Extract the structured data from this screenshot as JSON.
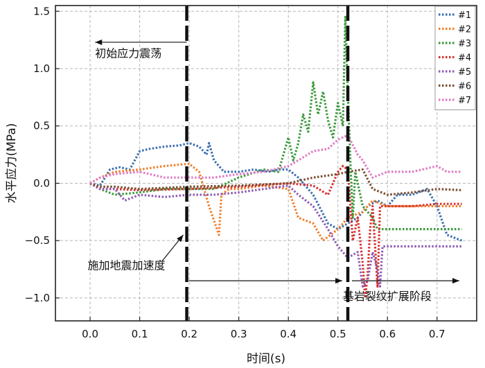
{
  "chart_data": {
    "type": "line",
    "title": "",
    "xlabel": "时间(s)",
    "ylabel": "水平应力(MPa)",
    "xlim": [
      -0.07,
      0.78
    ],
    "ylim": [
      -1.2,
      1.55
    ],
    "x_ticks": [
      0.0,
      0.1,
      0.2,
      0.3,
      0.4,
      0.5,
      0.6,
      0.7
    ],
    "x_tick_labels": [
      "0.0",
      "0.1",
      "0.2",
      "0.3",
      "0.4",
      "0.5",
      "0.6",
      "0.7"
    ],
    "y_ticks": [
      -1.0,
      -0.5,
      0.0,
      0.5,
      1.0,
      1.5
    ],
    "y_tick_labels": [
      "−1.0",
      "−0.5",
      "0.0",
      "0.5",
      "1.0",
      "1.5"
    ],
    "grid": true,
    "legend_position": "top-right",
    "series": [
      {
        "name": "#1",
        "color": "#3a6fb0",
        "points": [
          [
            0.0,
            0.0
          ],
          [
            0.02,
            -0.02
          ],
          [
            0.04,
            0.12
          ],
          [
            0.06,
            0.14
          ],
          [
            0.08,
            0.12
          ],
          [
            0.1,
            0.28
          ],
          [
            0.12,
            0.3
          ],
          [
            0.15,
            0.32
          ],
          [
            0.18,
            0.33
          ],
          [
            0.2,
            0.35
          ],
          [
            0.22,
            0.32
          ],
          [
            0.235,
            0.25
          ],
          [
            0.24,
            0.35
          ],
          [
            0.25,
            0.2
          ],
          [
            0.27,
            0.1
          ],
          [
            0.3,
            0.1
          ],
          [
            0.33,
            0.12
          ],
          [
            0.36,
            0.1
          ],
          [
            0.38,
            0.12
          ],
          [
            0.4,
            0.12
          ],
          [
            0.42,
            0.05
          ],
          [
            0.45,
            -0.1
          ],
          [
            0.48,
            -0.35
          ],
          [
            0.5,
            -0.4
          ],
          [
            0.52,
            -0.35
          ],
          [
            0.54,
            -0.3
          ],
          [
            0.56,
            -0.2
          ],
          [
            0.58,
            -0.15
          ],
          [
            0.6,
            -0.2
          ],
          [
            0.62,
            -0.1
          ],
          [
            0.65,
            -0.1
          ],
          [
            0.68,
            -0.05
          ],
          [
            0.7,
            -0.2
          ],
          [
            0.72,
            -0.45
          ],
          [
            0.75,
            -0.5
          ]
        ]
      },
      {
        "name": "#2",
        "color": "#f07f2c",
        "points": [
          [
            0.0,
            0.0
          ],
          [
            0.02,
            0.05
          ],
          [
            0.05,
            0.1
          ],
          [
            0.1,
            0.12
          ],
          [
            0.15,
            0.15
          ],
          [
            0.2,
            0.17
          ],
          [
            0.22,
            0.1
          ],
          [
            0.24,
            -0.2
          ],
          [
            0.26,
            -0.45
          ],
          [
            0.265,
            -0.1
          ],
          [
            0.28,
            -0.05
          ],
          [
            0.3,
            -0.05
          ],
          [
            0.35,
            -0.02
          ],
          [
            0.4,
            -0.05
          ],
          [
            0.42,
            -0.3
          ],
          [
            0.45,
            -0.35
          ],
          [
            0.47,
            -0.5
          ],
          [
            0.5,
            -0.4
          ],
          [
            0.52,
            -0.3
          ],
          [
            0.55,
            -0.25
          ],
          [
            0.57,
            -0.15
          ],
          [
            0.6,
            -0.2
          ],
          [
            0.65,
            -0.2
          ],
          [
            0.7,
            -0.2
          ],
          [
            0.75,
            -0.2
          ]
        ]
      },
      {
        "name": "#3",
        "color": "#3a9a3a",
        "points": [
          [
            0.0,
            0.0
          ],
          [
            0.02,
            -0.05
          ],
          [
            0.05,
            -0.1
          ],
          [
            0.1,
            -0.08
          ],
          [
            0.15,
            -0.05
          ],
          [
            0.2,
            -0.05
          ],
          [
            0.25,
            -0.05
          ],
          [
            0.3,
            0.05
          ],
          [
            0.35,
            0.12
          ],
          [
            0.38,
            0.1
          ],
          [
            0.4,
            0.4
          ],
          [
            0.41,
            0.2
          ],
          [
            0.42,
            0.35
          ],
          [
            0.43,
            0.6
          ],
          [
            0.44,
            0.45
          ],
          [
            0.45,
            0.88
          ],
          [
            0.46,
            0.6
          ],
          [
            0.47,
            0.8
          ],
          [
            0.48,
            0.55
          ],
          [
            0.49,
            0.4
          ],
          [
            0.5,
            0.7
          ],
          [
            0.51,
            0.5
          ],
          [
            0.515,
            1.45
          ],
          [
            0.52,
            0.8
          ],
          [
            0.525,
            0.2
          ],
          [
            0.53,
            -0.3
          ],
          [
            0.535,
            0.1
          ],
          [
            0.55,
            -0.2
          ],
          [
            0.57,
            -0.3
          ],
          [
            0.58,
            -0.4
          ],
          [
            0.6,
            -0.4
          ],
          [
            0.65,
            -0.4
          ],
          [
            0.7,
            -0.4
          ],
          [
            0.75,
            -0.4
          ]
        ]
      },
      {
        "name": "#4",
        "color": "#d62f2f",
        "points": [
          [
            0.0,
            0.0
          ],
          [
            0.02,
            -0.05
          ],
          [
            0.05,
            -0.05
          ],
          [
            0.1,
            -0.06
          ],
          [
            0.2,
            -0.05
          ],
          [
            0.3,
            -0.03
          ],
          [
            0.4,
            0.0
          ],
          [
            0.45,
            -0.02
          ],
          [
            0.48,
            -0.1
          ],
          [
            0.5,
            0.1
          ],
          [
            0.51,
            0.15
          ],
          [
            0.52,
            0.12
          ],
          [
            0.53,
            -0.5
          ],
          [
            0.54,
            -0.3
          ],
          [
            0.55,
            -0.7
          ],
          [
            0.555,
            -1.0
          ],
          [
            0.56,
            -0.8
          ],
          [
            0.565,
            -0.4
          ],
          [
            0.57,
            -0.2
          ],
          [
            0.58,
            -0.9
          ],
          [
            0.585,
            -0.2
          ],
          [
            0.6,
            -0.2
          ],
          [
            0.65,
            -0.2
          ],
          [
            0.7,
            -0.18
          ],
          [
            0.75,
            -0.18
          ]
        ]
      },
      {
        "name": "#5",
        "color": "#8e5cb5",
        "points": [
          [
            0.0,
            0.0
          ],
          [
            0.02,
            -0.05
          ],
          [
            0.05,
            -0.05
          ],
          [
            0.07,
            -0.15
          ],
          [
            0.1,
            -0.1
          ],
          [
            0.15,
            -0.12
          ],
          [
            0.2,
            -0.1
          ],
          [
            0.25,
            -0.1
          ],
          [
            0.3,
            -0.08
          ],
          [
            0.35,
            -0.05
          ],
          [
            0.4,
            -0.02
          ],
          [
            0.42,
            -0.1
          ],
          [
            0.45,
            -0.2
          ],
          [
            0.48,
            -0.4
          ],
          [
            0.5,
            -0.55
          ],
          [
            0.52,
            -0.65
          ],
          [
            0.54,
            -0.6
          ],
          [
            0.55,
            -0.9
          ],
          [
            0.56,
            -0.85
          ],
          [
            0.57,
            -0.6
          ],
          [
            0.58,
            -0.75
          ],
          [
            0.585,
            -0.9
          ],
          [
            0.59,
            -0.55
          ],
          [
            0.6,
            -0.55
          ],
          [
            0.65,
            -0.55
          ],
          [
            0.7,
            -0.55
          ],
          [
            0.75,
            -0.55
          ]
        ]
      },
      {
        "name": "#6",
        "color": "#7a4d2e",
        "points": [
          [
            0.0,
            0.0
          ],
          [
            0.02,
            -0.03
          ],
          [
            0.05,
            -0.03
          ],
          [
            0.1,
            -0.05
          ],
          [
            0.2,
            -0.03
          ],
          [
            0.3,
            -0.02
          ],
          [
            0.4,
            0.0
          ],
          [
            0.45,
            0.05
          ],
          [
            0.5,
            0.08
          ],
          [
            0.52,
            0.1
          ],
          [
            0.55,
            0.12
          ],
          [
            0.57,
            -0.05
          ],
          [
            0.6,
            -0.1
          ],
          [
            0.65,
            -0.08
          ],
          [
            0.7,
            -0.05
          ],
          [
            0.75,
            -0.06
          ]
        ]
      },
      {
        "name": "#7",
        "color": "#e07bc4",
        "points": [
          [
            0.0,
            0.0
          ],
          [
            0.02,
            0.05
          ],
          [
            0.05,
            0.08
          ],
          [
            0.1,
            0.1
          ],
          [
            0.15,
            0.05
          ],
          [
            0.2,
            0.05
          ],
          [
            0.25,
            0.05
          ],
          [
            0.3,
            0.08
          ],
          [
            0.35,
            0.1
          ],
          [
            0.4,
            0.15
          ],
          [
            0.42,
            0.2
          ],
          [
            0.45,
            0.28
          ],
          [
            0.48,
            0.3
          ],
          [
            0.5,
            0.38
          ],
          [
            0.52,
            0.42
          ],
          [
            0.54,
            0.25
          ],
          [
            0.55,
            0.2
          ],
          [
            0.57,
            0.05
          ],
          [
            0.6,
            0.1
          ],
          [
            0.65,
            0.1
          ],
          [
            0.7,
            0.15
          ],
          [
            0.72,
            0.1
          ],
          [
            0.75,
            0.1
          ]
        ]
      }
    ],
    "markers": [
      {
        "label": "施加地震加速度",
        "x": 0.195
      },
      {
        "label": "",
        "x": 0.52
      }
    ],
    "annotations": [
      {
        "text": "初始应力震荡",
        "x": 0.01,
        "y": 1.1
      },
      {
        "text": "施加地震加速度",
        "x": -0.005,
        "y": -0.75
      },
      {
        "text": "基岩裂纹扩展阶段",
        "x": 0.51,
        "y": -1.02
      }
    ]
  }
}
